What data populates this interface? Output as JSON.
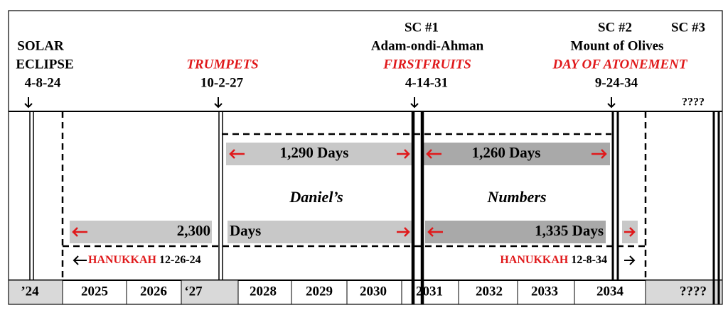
{
  "top_labels": {
    "eclipse": [
      "SOLAR",
      "ECLIPSE",
      "4-8-24"
    ],
    "trumpets": [
      "TRUMPETS",
      "10-2-27"
    ],
    "sc1": [
      "SC #1",
      "Adam-ondi-Ahman",
      "FIRSTFRUITS",
      "4-14-31"
    ],
    "sc2": [
      "SC #2",
      "Mount of Olives",
      "DAY OF ATONEMENT",
      "9-24-34"
    ],
    "sc3": [
      "SC #3",
      "????"
    ]
  },
  "periods": {
    "days_1290": "1,290 Days",
    "days_1260": "1,260 Days",
    "daniels": "Daniel’s",
    "numbers": "Numbers",
    "days_2300": "2,300",
    "days": "Days",
    "days_1335": "1,335 Days"
  },
  "hanukkah": [
    {
      "name": "HANUKKAH",
      "date": "12-26-24"
    },
    {
      "name": "HANUKKAH",
      "date": "12-8-34"
    }
  ],
  "years": [
    "’24",
    "2025",
    "2026",
    "‘27",
    "2028",
    "2029",
    "2030",
    "2031",
    "2032",
    "2033",
    "2034",
    "????"
  ]
}
